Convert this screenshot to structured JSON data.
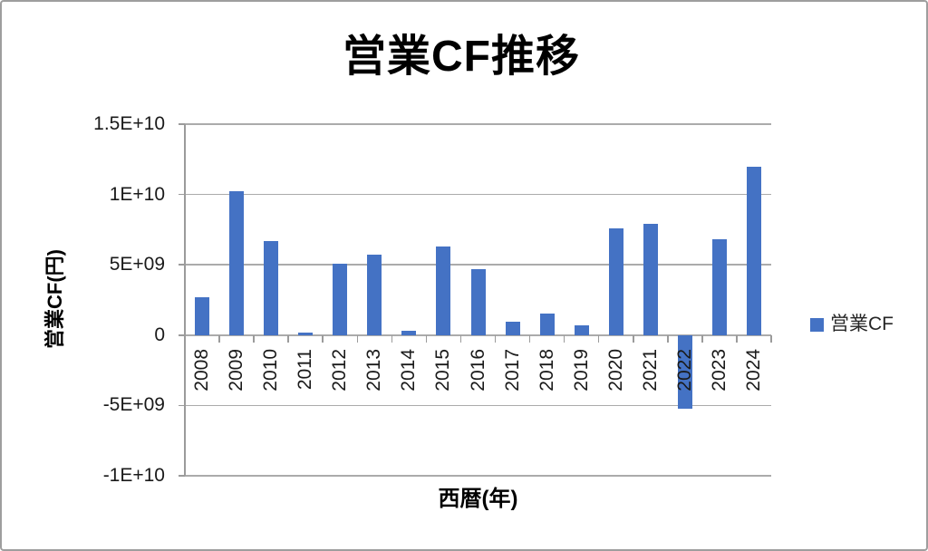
{
  "title": "営業CF推移",
  "chart_data": {
    "type": "bar",
    "title": "営業CF推移",
    "xlabel": "西暦(年)",
    "ylabel": "営業CF(円)",
    "categories": [
      "2008",
      "2009",
      "2010",
      "2011",
      "2012",
      "2013",
      "2014",
      "2015",
      "2016",
      "2017",
      "2018",
      "2019",
      "2020",
      "2021",
      "2022",
      "2023",
      "2024"
    ],
    "series": [
      {
        "name": "営業CF",
        "color": "#4472C4",
        "values": [
          2700000000,
          10200000000,
          6700000000,
          200000000,
          5100000000,
          5700000000,
          300000000,
          6300000000,
          4700000000,
          950000000,
          1550000000,
          700000000,
          7600000000,
          7900000000,
          -5200000000,
          6800000000,
          12000000000
        ]
      }
    ],
    "ylim": [
      -10000000000,
      15000000000
    ],
    "yticks": [
      {
        "value": 15000000000,
        "label": "1.5E+10"
      },
      {
        "value": 10000000000,
        "label": "1E+10"
      },
      {
        "value": 5000000000,
        "label": "5E+09"
      },
      {
        "value": 0,
        "label": "0"
      },
      {
        "value": -5000000000,
        "label": "-5E+09"
      },
      {
        "value": -10000000000,
        "label": "-1E+10"
      }
    ],
    "grid": "horizontal",
    "legend_position": "right"
  },
  "legend": {
    "label": "営業CF"
  },
  "colors": {
    "bar": "#4472C4",
    "gridline": "#ABABAB",
    "axis": "#9B9B9B",
    "text": "#1A1A1A",
    "frame_border": "#9E9E9E"
  }
}
